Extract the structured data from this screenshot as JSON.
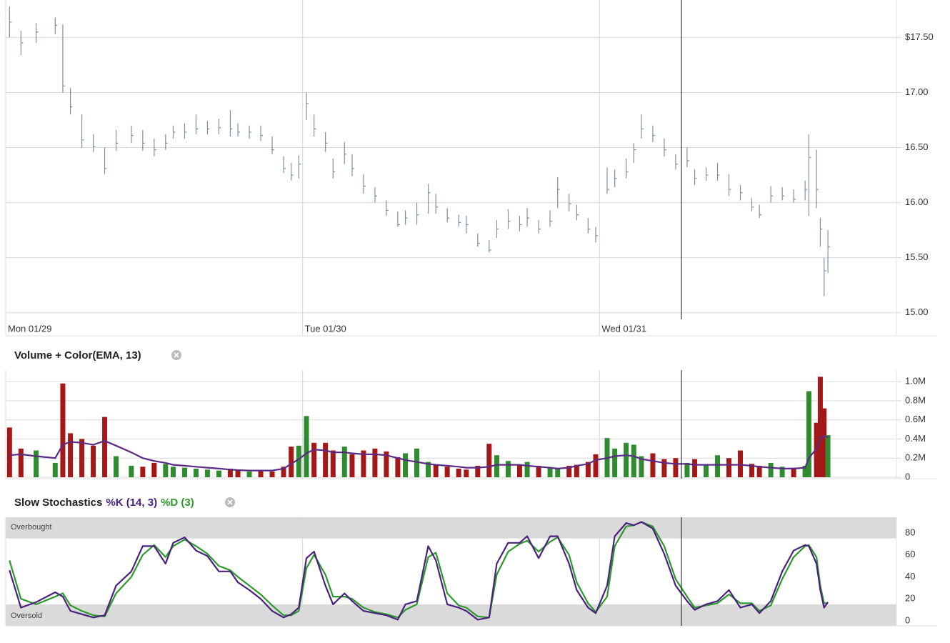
{
  "chart_data": [
    {
      "type": "ohlc",
      "color": "#7d90a4",
      "grid": true,
      "xlim": [
        0,
        234
      ],
      "xticks": [
        {
          "value": 0,
          "label": "Mon 01/29"
        },
        {
          "value": 78,
          "label": "Tue 01/30"
        },
        {
          "value": 156,
          "label": "Wed 01/31"
        }
      ],
      "ylim": [
        14.94,
        17.84
      ],
      "yticks": [
        {
          "value": 17.5,
          "label": "$17.50"
        },
        {
          "value": 17,
          "label": "17.00"
        },
        {
          "value": 16.5,
          "label": "16.50"
        },
        {
          "value": 16,
          "label": "16.00"
        },
        {
          "value": 15.5,
          "label": "15.50"
        },
        {
          "value": 15,
          "label": "15.00"
        }
      ],
      "x": [
        1,
        4,
        8,
        13,
        15,
        17,
        20,
        23,
        26,
        29,
        33,
        36,
        39,
        42,
        44,
        47,
        50,
        53,
        56,
        59,
        61,
        64,
        67,
        70,
        73,
        75,
        77,
        79,
        81,
        84,
        86,
        89,
        91,
        94,
        97,
        100,
        103,
        105,
        108,
        111,
        113,
        116,
        119,
        121,
        124,
        127,
        129,
        132,
        135,
        137,
        140,
        143,
        145,
        148,
        150,
        153,
        155,
        158,
        160,
        163,
        165,
        167,
        170,
        173,
        176,
        179,
        181,
        184,
        187,
        190,
        193,
        196,
        198,
        201,
        204,
        207,
        210,
        211,
        213,
        214,
        215,
        216
      ],
      "values": [
        17.64,
        17.45,
        17.55,
        17.61,
        17.06,
        16.87,
        16.57,
        16.51,
        16.31,
        16.54,
        16.61,
        16.54,
        16.48,
        16.54,
        16.64,
        16.64,
        16.67,
        16.67,
        16.68,
        16.67,
        16.64,
        16.64,
        16.61,
        16.48,
        16.31,
        16.25,
        16.35,
        16.9,
        16.67,
        16.54,
        16.28,
        16.44,
        16.31,
        16.15,
        16.06,
        15.93,
        15.8,
        15.86,
        15.89,
        16.09,
        15.96,
        15.86,
        15.82,
        15.8,
        15.63,
        15.57,
        15.76,
        15.83,
        15.8,
        15.86,
        15.76,
        15.83,
        16.12,
        15.99,
        15.89,
        15.76,
        15.7,
        16.12,
        16.22,
        16.28,
        16.48,
        16.67,
        16.61,
        16.48,
        16.35,
        16.38,
        16.22,
        16.25,
        16.25,
        16.12,
        16.09,
        15.96,
        15.89,
        16.06,
        16.06,
        16.03,
        16.12,
        16.41,
        16.12,
        15.76,
        15.38,
        15.6
      ],
      "high": [
        17.78,
        17.56,
        17.63,
        17.68,
        17.62,
        17.04,
        16.8,
        16.62,
        16.5,
        16.66,
        16.7,
        16.66,
        16.58,
        16.62,
        16.7,
        16.72,
        16.8,
        16.74,
        16.76,
        16.84,
        16.72,
        16.7,
        16.7,
        16.6,
        16.42,
        16.36,
        16.43,
        17.0,
        16.8,
        16.64,
        16.4,
        16.55,
        16.44,
        16.26,
        16.14,
        16.02,
        15.92,
        15.93,
        16.0,
        16.17,
        16.08,
        15.95,
        15.89,
        15.88,
        15.72,
        15.66,
        15.84,
        15.94,
        15.88,
        15.95,
        15.84,
        15.93,
        16.23,
        16.08,
        15.98,
        15.86,
        15.78,
        16.32,
        16.3,
        16.4,
        16.54,
        16.8,
        16.7,
        16.58,
        16.44,
        16.5,
        16.3,
        16.32,
        16.36,
        16.26,
        16.16,
        16.04,
        15.98,
        16.15,
        16.14,
        16.12,
        16.2,
        16.62,
        16.48,
        15.86,
        15.5,
        15.75
      ],
      "low": [
        17.5,
        17.34,
        17.45,
        17.53,
        17.0,
        16.8,
        16.5,
        16.46,
        16.26,
        16.47,
        16.54,
        16.47,
        16.42,
        16.48,
        16.58,
        16.58,
        16.62,
        16.62,
        16.62,
        16.6,
        16.6,
        16.58,
        16.56,
        16.44,
        16.27,
        16.2,
        16.22,
        16.75,
        16.6,
        16.46,
        16.22,
        16.35,
        16.24,
        16.08,
        16.0,
        15.88,
        15.78,
        15.8,
        15.8,
        15.9,
        15.9,
        15.82,
        15.78,
        15.72,
        15.6,
        15.55,
        15.68,
        15.76,
        15.74,
        15.78,
        15.72,
        15.78,
        15.95,
        15.92,
        15.84,
        15.72,
        15.64,
        16.08,
        16.14,
        16.22,
        16.36,
        16.58,
        16.55,
        16.42,
        16.3,
        16.32,
        16.16,
        16.2,
        16.2,
        16.06,
        16.02,
        15.92,
        15.86,
        16.0,
        16.02,
        16.0,
        16.02,
        15.88,
        15.95,
        15.6,
        15.15,
        15.36
      ]
    },
    {
      "type": "bar",
      "title": "Volume + Color(EMA, 13)",
      "up_color": "#2e8b2e",
      "down_color": "#a51818",
      "ema_color": "#5b2a86",
      "grid": true,
      "xlim": [
        0,
        234
      ],
      "xticks": [
        0,
        78,
        156
      ],
      "ylim": [
        0,
        1120000
      ],
      "yticks": [
        0,
        {
          "value": 200000,
          "label": "0.2M"
        },
        {
          "value": 400000,
          "label": "0.4M"
        },
        {
          "value": 600000,
          "label": "0.6M"
        },
        {
          "value": 800000,
          "label": "0.8M"
        },
        {
          "value": 1000000,
          "label": "1.0M"
        }
      ],
      "x": [
        1,
        4,
        8,
        13,
        15,
        17,
        20,
        23,
        26,
        29,
        33,
        36,
        39,
        42,
        44,
        47,
        50,
        53,
        56,
        59,
        61,
        64,
        67,
        70,
        73,
        75,
        77,
        79,
        81,
        84,
        86,
        89,
        91,
        94,
        97,
        100,
        103,
        105,
        108,
        111,
        113,
        116,
        119,
        121,
        124,
        127,
        129,
        132,
        135,
        137,
        140,
        143,
        145,
        148,
        150,
        153,
        155,
        158,
        160,
        163,
        165,
        167,
        170,
        173,
        176,
        179,
        181,
        184,
        187,
        190,
        193,
        196,
        198,
        201,
        204,
        207,
        210,
        211,
        213,
        214,
        215,
        216
      ],
      "values": [
        520000,
        300000,
        280000,
        150000,
        980000,
        460000,
        400000,
        330000,
        630000,
        220000,
        120000,
        110000,
        150000,
        140000,
        110000,
        100000,
        90000,
        80000,
        70000,
        90000,
        70000,
        60000,
        70000,
        60000,
        110000,
        320000,
        330000,
        640000,
        360000,
        360000,
        280000,
        320000,
        240000,
        280000,
        300000,
        270000,
        210000,
        250000,
        300000,
        160000,
        130000,
        110000,
        90000,
        80000,
        120000,
        350000,
        230000,
        170000,
        130000,
        160000,
        120000,
        100000,
        90000,
        120000,
        130000,
        160000,
        240000,
        410000,
        300000,
        360000,
        340000,
        220000,
        250000,
        190000,
        200000,
        150000,
        190000,
        130000,
        230000,
        200000,
        280000,
        140000,
        120000,
        150000,
        110000,
        100000,
        120000,
        900000,
        570000,
        1050000,
        720000,
        440000
      ],
      "ema_values": [
        230000,
        240000,
        220000,
        200000,
        340000,
        370000,
        360000,
        340000,
        380000,
        330000,
        260000,
        200000,
        170000,
        150000,
        130000,
        120000,
        110000,
        100000,
        90000,
        80000,
        75000,
        70000,
        70000,
        70000,
        90000,
        140000,
        190000,
        250000,
        290000,
        280000,
        260000,
        260000,
        250000,
        240000,
        240000,
        230000,
        200000,
        180000,
        160000,
        140000,
        130000,
        120000,
        110000,
        100000,
        100000,
        110000,
        130000,
        130000,
        130000,
        120000,
        110000,
        100000,
        90000,
        100000,
        120000,
        140000,
        180000,
        200000,
        220000,
        230000,
        220000,
        190000,
        170000,
        150000,
        140000,
        140000,
        130000,
        130000,
        130000,
        130000,
        130000,
        120000,
        110000,
        100000,
        90000,
        90000,
        100000,
        200000,
        300000,
        410000,
        430000,
        420000
      ]
    },
    {
      "type": "line",
      "title": "Slow Stochastics",
      "grid": true,
      "xlim": [
        0,
        234
      ],
      "xticks": [
        0,
        78,
        156
      ],
      "ylim": [
        -4.6,
        94.3
      ],
      "yticks": [
        0,
        20,
        40,
        60,
        80
      ],
      "bands": [
        {
          "label": "Overbought",
          "from": 75,
          "to": 94.3
        },
        {
          "label": "Oversold",
          "from": -4.6,
          "to": 15
        }
      ],
      "x": [
        1,
        4,
        8,
        13,
        15,
        17,
        20,
        23,
        26,
        29,
        33,
        36,
        39,
        42,
        44,
        47,
        50,
        53,
        56,
        59,
        61,
        64,
        67,
        70,
        73,
        75,
        77,
        79,
        81,
        84,
        86,
        89,
        91,
        94,
        97,
        100,
        103,
        105,
        108,
        111,
        113,
        116,
        119,
        121,
        124,
        127,
        129,
        132,
        135,
        137,
        140,
        143,
        145,
        148,
        150,
        153,
        155,
        158,
        160,
        163,
        165,
        167,
        170,
        173,
        176,
        179,
        181,
        184,
        187,
        190,
        193,
        196,
        198,
        201,
        204,
        207,
        210,
        211,
        213,
        214,
        215,
        216
      ],
      "series": [
        {
          "name": "%K (14, 3)",
          "color": "#4b2180",
          "values": [
            46,
            12,
            17,
            26,
            22,
            9,
            6,
            3,
            5,
            32,
            45,
            68,
            68,
            52,
            71,
            76,
            64,
            59,
            45,
            45,
            35,
            28,
            20,
            9,
            3,
            6,
            12,
            57,
            63,
            32,
            15,
            25,
            18,
            9,
            7,
            5,
            1,
            15,
            18,
            68,
            55,
            15,
            12,
            9,
            1,
            3,
            52,
            71,
            71,
            77,
            57,
            77,
            77,
            52,
            28,
            12,
            7,
            32,
            77,
            89,
            87,
            90,
            84,
            61,
            32,
            18,
            10,
            15,
            18,
            28,
            12,
            15,
            7,
            18,
            45,
            64,
            69,
            68,
            52,
            28,
            12,
            17
          ]
        },
        {
          "name": "%D (3)",
          "color": "#2a9a2a",
          "values": [
            55,
            20,
            15,
            22,
            25,
            14,
            9,
            5,
            4,
            25,
            40,
            60,
            69,
            58,
            68,
            74,
            68,
            61,
            50,
            46,
            40,
            32,
            24,
            14,
            5,
            5,
            9,
            48,
            60,
            42,
            22,
            22,
            20,
            12,
            8,
            6,
            3,
            10,
            15,
            58,
            62,
            25,
            14,
            12,
            4,
            3,
            42,
            63,
            70,
            73,
            63,
            72,
            76,
            60,
            35,
            16,
            8,
            22,
            68,
            86,
            87,
            90,
            86,
            68,
            38,
            22,
            12,
            14,
            16,
            24,
            16,
            16,
            9,
            14,
            38,
            58,
            68,
            69,
            58,
            32,
            16,
            16
          ]
        }
      ]
    }
  ]
}
